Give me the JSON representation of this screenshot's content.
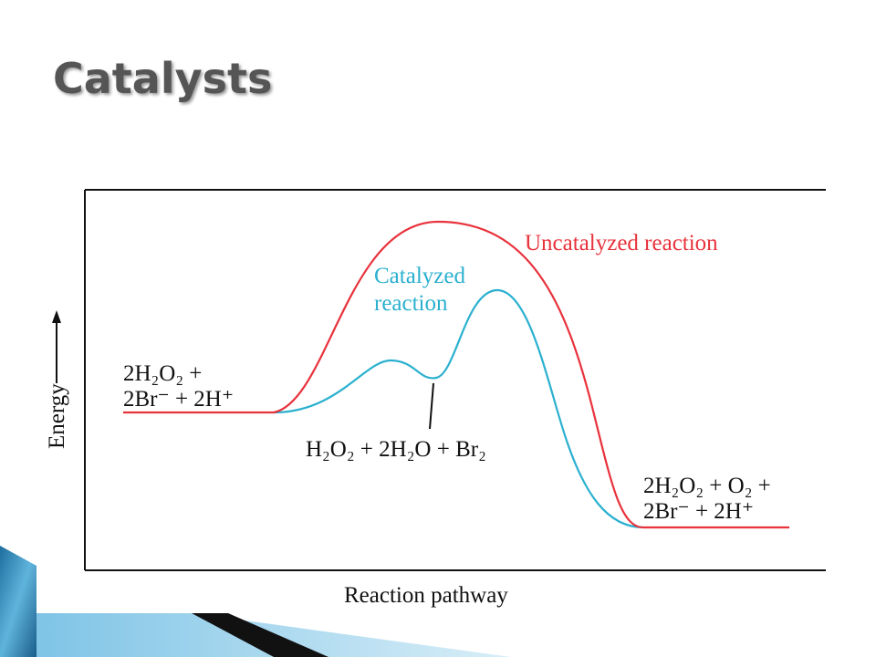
{
  "slide": {
    "title": "Catalysts"
  },
  "diagram": {
    "uncatalyzed_label": "Uncatalyzed reaction",
    "catalyzed_label": [
      "Catalyzed",
      "reaction"
    ],
    "reactants": [
      "2H₂O₂ +",
      "2Br⁻ + 2H⁺"
    ],
    "intermediate": "H₂O₂ + 2H₂O + Br₂",
    "products": [
      "2H₂O₂ + O₂ +",
      "2Br⁻ + 2H⁺"
    ],
    "y_axis_label": "Energy",
    "x_axis_label": "Reaction pathway"
  }
}
